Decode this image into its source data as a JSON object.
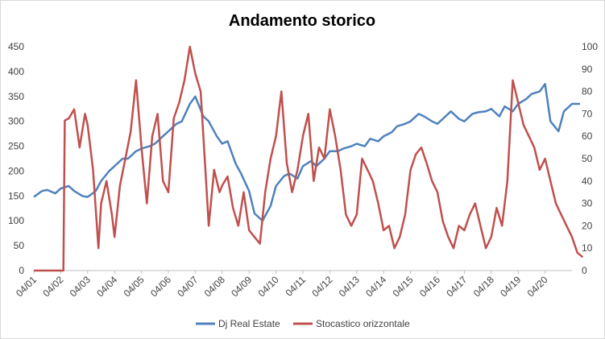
{
  "chart_data": {
    "type": "line",
    "title": "Andamento storico",
    "x_categories": [
      "04/01",
      "04/02",
      "04/03",
      "04/04",
      "04/05",
      "04/06",
      "04/07",
      "04/08",
      "04/09",
      "04/10",
      "04/11",
      "04/12",
      "04/13",
      "04/14",
      "04/15",
      "04/16",
      "04/17",
      "04/18",
      "04/19",
      "04/20"
    ],
    "y_left": {
      "min": 0,
      "max": 450,
      "ticks": [
        0,
        50,
        100,
        150,
        200,
        250,
        300,
        350,
        400,
        450
      ]
    },
    "y_right": {
      "min": 0,
      "max": 100,
      "ticks": [
        0,
        10,
        20,
        30,
        40,
        50,
        60,
        70,
        80,
        90,
        100
      ]
    },
    "grid": false,
    "legend_position": "bottom",
    "series": [
      {
        "name": "Dj Real Estate",
        "axis": "left",
        "color": "#4f81bd",
        "points": [
          [
            0,
            148
          ],
          [
            0.3,
            160
          ],
          [
            0.5,
            162
          ],
          [
            0.8,
            155
          ],
          [
            1.0,
            165
          ],
          [
            1.3,
            170
          ],
          [
            1.5,
            160
          ],
          [
            1.8,
            150
          ],
          [
            2.0,
            148
          ],
          [
            2.3,
            160
          ],
          [
            2.5,
            180
          ],
          [
            2.8,
            200
          ],
          [
            3.0,
            210
          ],
          [
            3.3,
            225
          ],
          [
            3.5,
            225
          ],
          [
            3.8,
            240
          ],
          [
            4.0,
            245
          ],
          [
            4.3,
            250
          ],
          [
            4.5,
            255
          ],
          [
            4.8,
            270
          ],
          [
            5.0,
            280
          ],
          [
            5.3,
            295
          ],
          [
            5.5,
            300
          ],
          [
            5.8,
            335
          ],
          [
            6.0,
            350
          ],
          [
            6.3,
            310
          ],
          [
            6.5,
            300
          ],
          [
            6.8,
            270
          ],
          [
            7.0,
            255
          ],
          [
            7.2,
            260
          ],
          [
            7.5,
            215
          ],
          [
            7.7,
            195
          ],
          [
            8.0,
            160
          ],
          [
            8.2,
            115
          ],
          [
            8.5,
            100
          ],
          [
            8.8,
            130
          ],
          [
            9.0,
            170
          ],
          [
            9.3,
            190
          ],
          [
            9.5,
            195
          ],
          [
            9.8,
            185
          ],
          [
            10.0,
            210
          ],
          [
            10.3,
            220
          ],
          [
            10.5,
            210
          ],
          [
            10.8,
            225
          ],
          [
            11.0,
            240
          ],
          [
            11.3,
            240
          ],
          [
            11.5,
            245
          ],
          [
            11.8,
            250
          ],
          [
            12.0,
            255
          ],
          [
            12.3,
            250
          ],
          [
            12.5,
            265
          ],
          [
            12.8,
            260
          ],
          [
            13.0,
            270
          ],
          [
            13.3,
            278
          ],
          [
            13.5,
            290
          ],
          [
            13.8,
            295
          ],
          [
            14.0,
            300
          ],
          [
            14.3,
            315
          ],
          [
            14.5,
            310
          ],
          [
            14.8,
            300
          ],
          [
            15.0,
            295
          ],
          [
            15.3,
            310
          ],
          [
            15.5,
            320
          ],
          [
            15.8,
            305
          ],
          [
            16.0,
            300
          ],
          [
            16.3,
            315
          ],
          [
            16.5,
            318
          ],
          [
            16.8,
            320
          ],
          [
            17.0,
            325
          ],
          [
            17.3,
            310
          ],
          [
            17.5,
            330
          ],
          [
            17.8,
            320
          ],
          [
            18.0,
            335
          ],
          [
            18.3,
            345
          ],
          [
            18.5,
            355
          ],
          [
            18.8,
            360
          ],
          [
            19.0,
            375
          ],
          [
            19.2,
            300
          ],
          [
            19.5,
            280
          ],
          [
            19.7,
            320
          ],
          [
            20.0,
            335
          ],
          [
            20.3,
            335
          ]
        ]
      },
      {
        "name": "Stocastico orizzontale",
        "axis": "right",
        "color": "#c0504d",
        "points": [
          [
            0,
            0
          ],
          [
            0.5,
            0
          ],
          [
            1.0,
            0
          ],
          [
            1.1,
            0
          ],
          [
            1.15,
            67
          ],
          [
            1.3,
            68
          ],
          [
            1.5,
            72
          ],
          [
            1.7,
            55
          ],
          [
            1.9,
            70
          ],
          [
            2.0,
            65
          ],
          [
            2.2,
            45
          ],
          [
            2.4,
            10
          ],
          [
            2.5,
            30
          ],
          [
            2.7,
            40
          ],
          [
            2.9,
            25
          ],
          [
            3.0,
            15
          ],
          [
            3.2,
            38
          ],
          [
            3.4,
            50
          ],
          [
            3.6,
            62
          ],
          [
            3.8,
            85
          ],
          [
            4.0,
            55
          ],
          [
            4.2,
            30
          ],
          [
            4.4,
            60
          ],
          [
            4.6,
            70
          ],
          [
            4.8,
            40
          ],
          [
            5.0,
            35
          ],
          [
            5.2,
            68
          ],
          [
            5.4,
            75
          ],
          [
            5.6,
            85
          ],
          [
            5.8,
            100
          ],
          [
            6.0,
            88
          ],
          [
            6.2,
            80
          ],
          [
            6.4,
            40
          ],
          [
            6.5,
            20
          ],
          [
            6.7,
            45
          ],
          [
            6.9,
            35
          ],
          [
            7.0,
            38
          ],
          [
            7.2,
            42
          ],
          [
            7.4,
            28
          ],
          [
            7.6,
            20
          ],
          [
            7.8,
            35
          ],
          [
            8.0,
            18
          ],
          [
            8.2,
            15
          ],
          [
            8.4,
            12
          ],
          [
            8.6,
            35
          ],
          [
            8.8,
            50
          ],
          [
            9.0,
            60
          ],
          [
            9.2,
            80
          ],
          [
            9.4,
            48
          ],
          [
            9.6,
            35
          ],
          [
            9.8,
            45
          ],
          [
            10.0,
            60
          ],
          [
            10.2,
            70
          ],
          [
            10.4,
            40
          ],
          [
            10.6,
            55
          ],
          [
            10.8,
            50
          ],
          [
            11.0,
            72
          ],
          [
            11.2,
            60
          ],
          [
            11.4,
            45
          ],
          [
            11.6,
            25
          ],
          [
            11.8,
            20
          ],
          [
            12.0,
            25
          ],
          [
            12.2,
            50
          ],
          [
            12.4,
            45
          ],
          [
            12.6,
            40
          ],
          [
            12.8,
            30
          ],
          [
            13.0,
            18
          ],
          [
            13.2,
            20
          ],
          [
            13.4,
            10
          ],
          [
            13.6,
            15
          ],
          [
            13.8,
            25
          ],
          [
            14.0,
            45
          ],
          [
            14.2,
            52
          ],
          [
            14.4,
            55
          ],
          [
            14.6,
            48
          ],
          [
            14.8,
            40
          ],
          [
            15.0,
            35
          ],
          [
            15.2,
            22
          ],
          [
            15.4,
            15
          ],
          [
            15.6,
            10
          ],
          [
            15.8,
            20
          ],
          [
            16.0,
            18
          ],
          [
            16.2,
            25
          ],
          [
            16.4,
            30
          ],
          [
            16.6,
            20
          ],
          [
            16.8,
            10
          ],
          [
            17.0,
            15
          ],
          [
            17.2,
            28
          ],
          [
            17.4,
            20
          ],
          [
            17.6,
            40
          ],
          [
            17.8,
            85
          ],
          [
            18.0,
            75
          ],
          [
            18.2,
            65
          ],
          [
            18.4,
            60
          ],
          [
            18.6,
            55
          ],
          [
            18.8,
            45
          ],
          [
            19.0,
            50
          ],
          [
            19.2,
            40
          ],
          [
            19.4,
            30
          ],
          [
            19.6,
            25
          ],
          [
            19.8,
            20
          ],
          [
            20.0,
            15
          ],
          [
            20.2,
            8
          ],
          [
            20.4,
            6
          ]
        ]
      }
    ]
  }
}
